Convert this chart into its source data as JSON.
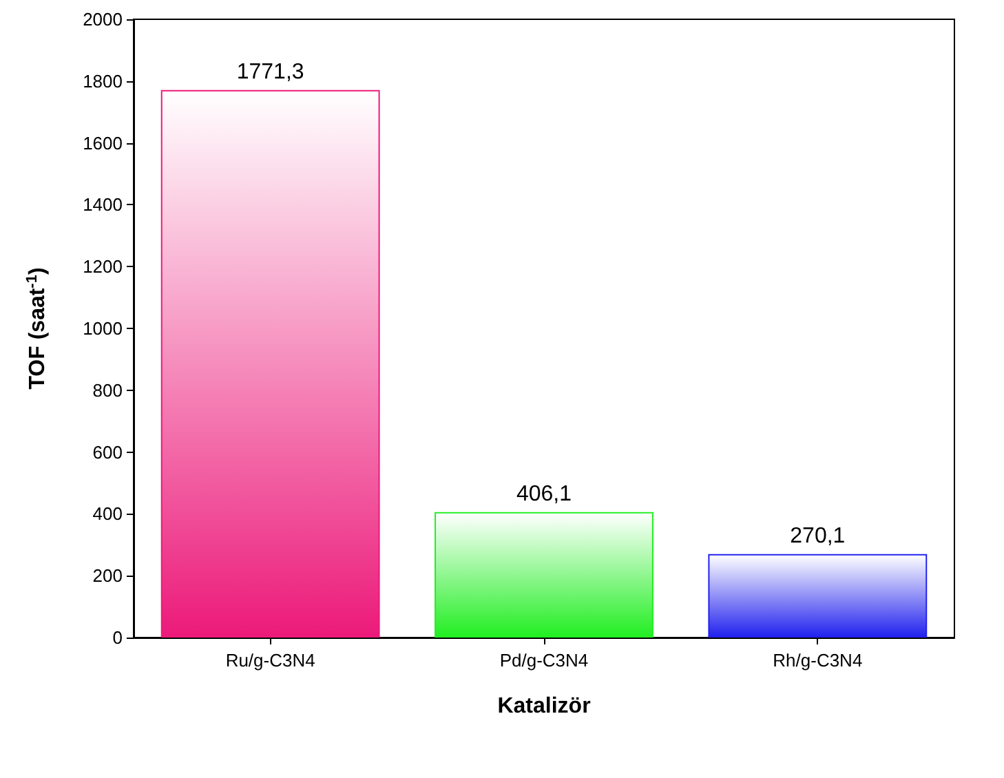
{
  "chart_data": {
    "type": "bar",
    "xlabel": "Katalizör",
    "ylabel": "TOF (saat$^{-1}$)",
    "categories": [
      "Ru/g-C3N4",
      "Pd/g-C3N4",
      "Rh/g-C3N4"
    ],
    "values": [
      1771.3,
      406.1,
      270.1
    ],
    "colors": [
      "#ec1a7a",
      "#22ee22",
      "#2222ee"
    ],
    "value_labels": [
      "1771,3",
      "406,1",
      "270,1"
    ],
    "ylim": [
      0,
      2000
    ],
    "yticks": [
      0,
      200,
      400,
      600,
      800,
      1000,
      1200,
      1400,
      1600,
      1800,
      2000
    ],
    "grid": false
  }
}
